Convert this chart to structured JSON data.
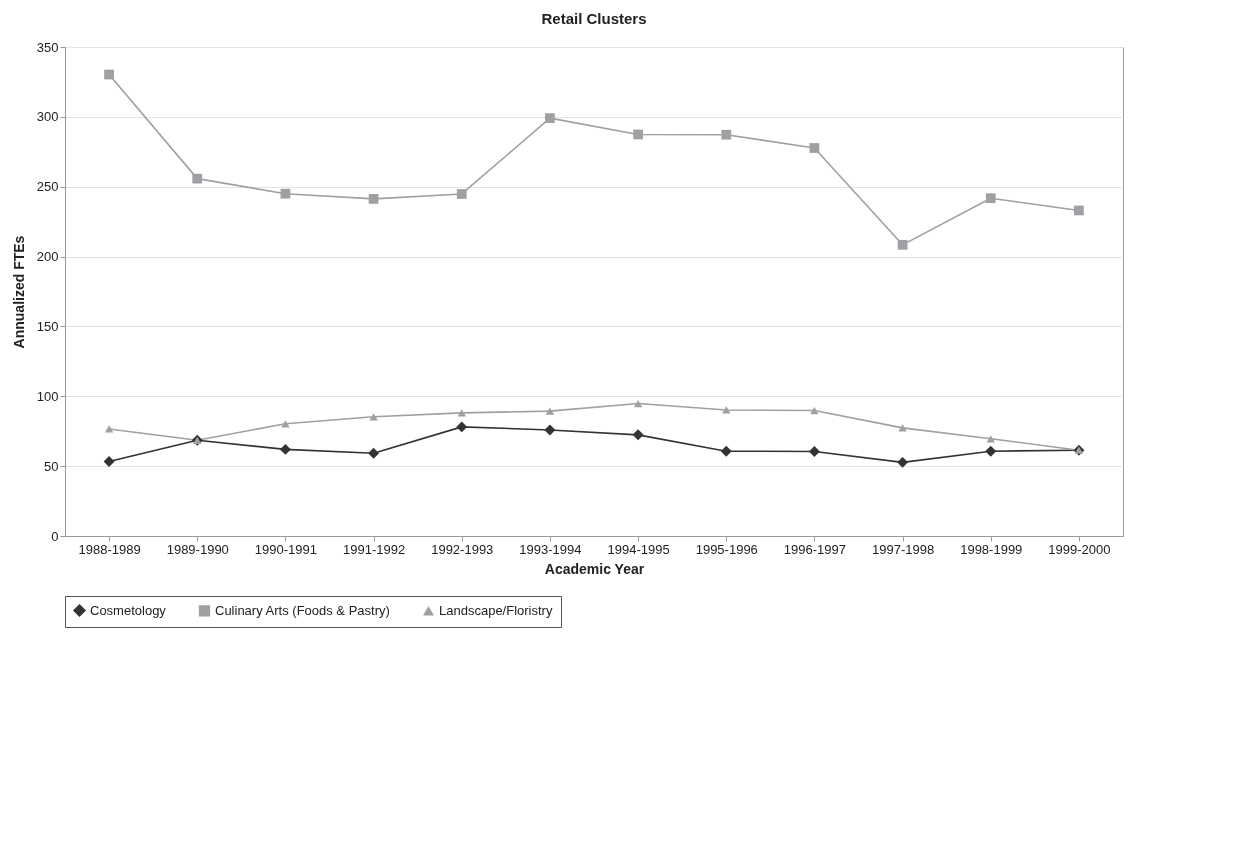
{
  "chart_data": {
    "type": "line",
    "title": "Retail Clusters",
    "xlabel": "Academic Year",
    "ylabel": "Annualized FTEs",
    "categories": [
      "1988-1989",
      "1989-1990",
      "1990-1991",
      "1991-1992",
      "1992-1993",
      "1993-1994",
      "1994-1995",
      "1995-1996",
      "1996-1997",
      "1997-1998",
      "1998-1999",
      "1999-2000"
    ],
    "series": [
      {
        "name": "Cosmetology",
        "color": "#333333",
        "marker": "diamond",
        "values": [
          53.3,
          68.5,
          62,
          59.2,
          78.1,
          75.9,
          72.4,
          60.7,
          60.5,
          52.7,
          60.7,
          61.4
        ]
      },
      {
        "name": "Culinary Arts (Foods & Pastry)",
        "color": "#a0a0a4",
        "marker": "square",
        "values": [
          330.3,
          255.8,
          245,
          241.3,
          244.8,
          299.1,
          287.4,
          287.2,
          277.7,
          208.4,
          241.8,
          233
        ]
      },
      {
        "name": "Landscape/Floristry",
        "color": "#a0a0a4",
        "marker": "triangle",
        "values": [
          76.6,
          68.5,
          80.3,
          85.3,
          88.1,
          89.4,
          94.8,
          90.2,
          89.8,
          77.4,
          69.6,
          61.4
        ]
      }
    ],
    "ylim": [
      0,
      350
    ],
    "yticks": [
      0,
      50,
      100,
      150,
      200,
      250,
      300,
      350
    ],
    "grid": "y",
    "legend": "bottom",
    "line_style": "solid"
  }
}
